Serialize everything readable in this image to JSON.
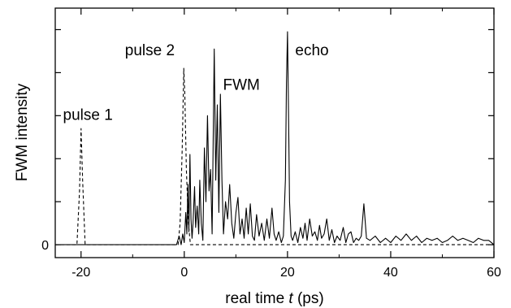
{
  "chart_data": {
    "type": "line",
    "title": "",
    "xlabel": {
      "prefix": "real time ",
      "var": "t",
      "suffix": " (ps)"
    },
    "ylabel": "FWM intensity",
    "xlim": [
      -25,
      60
    ],
    "ylim": [
      -0.06,
      1.1
    ],
    "x_ticks": [
      -20,
      0,
      20,
      40,
      60
    ],
    "x_tick_labels": [
      "-20",
      "0",
      "20",
      "40",
      "60"
    ],
    "y_ticks": [
      0
    ],
    "y_tick_labels": [
      "0"
    ],
    "y_minor_ticks": [
      0.2,
      0.4,
      0.6,
      0.8,
      1.0
    ],
    "grid": false,
    "legend": "none",
    "annotations": [
      {
        "text": "pulse 1",
        "x": -23.5,
        "y": 0.58
      },
      {
        "text": "pulse 2",
        "x": -11.5,
        "y": 0.88
      },
      {
        "text": "FWM",
        "x": 7.5,
        "y": 0.72
      },
      {
        "text": "echo",
        "x": 21.5,
        "y": 0.88
      }
    ],
    "series": [
      {
        "style": "dashed",
        "x": [
          -25,
          -20.8,
          -20.3,
          -20.0,
          -19.7,
          -19.2,
          -1.2,
          -0.8,
          -0.4,
          -0.1,
          0.1,
          0.4,
          0.8,
          1.2,
          60
        ],
        "y": [
          0,
          0,
          0.25,
          0.54,
          0.3,
          0,
          0,
          0.1,
          0.45,
          0.82,
          0.7,
          0.35,
          0.1,
          0,
          0
        ]
      },
      {
        "style": "solid",
        "x": [
          -25,
          -1.5,
          -1.0,
          -0.6,
          -0.3,
          0,
          0.3,
          0.5,
          0.7,
          0.9,
          1.1,
          1.3,
          1.5,
          1.7,
          2.0,
          2.2,
          2.5,
          2.8,
          3.0,
          3.3,
          3.6,
          3.9,
          4.2,
          4.5,
          4.8,
          5.1,
          5.4,
          5.8,
          6.1,
          6.4,
          6.7,
          7.0,
          7.3,
          7.6,
          8.0,
          8.4,
          8.8,
          9.2,
          9.6,
          10.0,
          10.4,
          10.8,
          11.2,
          11.6,
          12.0,
          12.4,
          12.8,
          13.2,
          13.6,
          14.0,
          14.5,
          15.0,
          15.5,
          16.0,
          16.5,
          17.0,
          17.4,
          17.8,
          18.3,
          18.8,
          19.2,
          19.6,
          19.8,
          20.0,
          20.2,
          20.4,
          20.7,
          21.0,
          21.5,
          22.0,
          22.5,
          23.0,
          23.4,
          23.8,
          24.3,
          24.8,
          25.3,
          25.8,
          26.2,
          26.6,
          27.1,
          27.6,
          28.1,
          28.6,
          29.1,
          29.6,
          30.2,
          30.8,
          31.3,
          31.8,
          32.3,
          32.8,
          33.3,
          33.8,
          34.3,
          34.8,
          35.3,
          36.0,
          37.0,
          38.0,
          39.0,
          40.0,
          41.0,
          42.0,
          43.0,
          44.0,
          45.0,
          46.0,
          47.0,
          48.0,
          49.0,
          50.0,
          51.0,
          52.0,
          53.0,
          54.0,
          55.0,
          56.0,
          57.0,
          58.0,
          59.0,
          60
        ],
        "y": [
          0,
          0,
          0.04,
          0.0,
          0.05,
          0.01,
          0.15,
          0.05,
          0.28,
          0.06,
          0.42,
          0.12,
          0.03,
          0.1,
          0.27,
          0.08,
          0.18,
          0.05,
          0.3,
          0.1,
          0.02,
          0.45,
          0.2,
          0.6,
          0.25,
          0.35,
          0.05,
          0.91,
          0.3,
          0.65,
          0.15,
          0.7,
          0.3,
          0.05,
          0.2,
          0.12,
          0.28,
          0.1,
          0.03,
          0.15,
          0.22,
          0.05,
          0.12,
          0.03,
          0.17,
          0.05,
          0.19,
          0.04,
          0.02,
          0.14,
          0.04,
          0.1,
          0.02,
          0.12,
          0.03,
          0.17,
          0.05,
          0.02,
          0.06,
          0.01,
          0.04,
          0.3,
          0.75,
          0.99,
          0.6,
          0.2,
          0.04,
          0.02,
          0.06,
          0.01,
          0.08,
          0.03,
          0.1,
          0.02,
          0.12,
          0.04,
          0.06,
          0.02,
          0.09,
          0.03,
          0.05,
          0.12,
          0.02,
          0.07,
          0.01,
          0.04,
          0.02,
          0.08,
          0.01,
          0.05,
          0.06,
          0.01,
          0.03,
          0.02,
          0.04,
          0.19,
          0.03,
          0.02,
          0.04,
          0.01,
          0.03,
          0.01,
          0.04,
          0.02,
          0.05,
          0.02,
          0.04,
          0.01,
          0.03,
          0.02,
          0.03,
          0.01,
          0.02,
          0.04,
          0.02,
          0.03,
          0.02,
          0.01,
          0.03,
          0.02,
          0.02,
          0
        ]
      }
    ]
  }
}
